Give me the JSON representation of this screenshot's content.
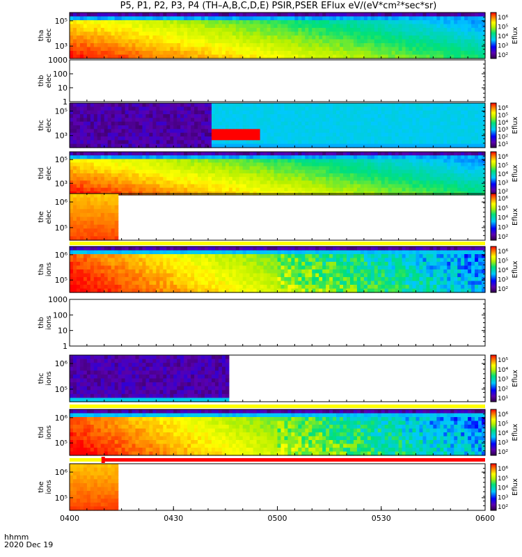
{
  "title": "P5, P1, P2, P3, P4 (TH–A,B,C,D,E) PSIR,PSER EFlux eV/(eV*cm²*sec*sr)",
  "footer": {
    "line1": "hhmm",
    "line2": "2020 Dec 19"
  },
  "chart_data": {
    "type": "heatmap",
    "x_axis": {
      "range": [
        "0400",
        "0600"
      ],
      "ticks": [
        "0400",
        "0430",
        "0500",
        "0530",
        "0600"
      ]
    },
    "panels": [
      {
        "id": "tha-elec",
        "ylabel": [
          "tha",
          "elec"
        ],
        "yticks": [
          "10⁵",
          "10³"
        ],
        "kind": "spec",
        "profile": "elec_full",
        "colorbar": true,
        "cbar_ticks": [
          "10⁶",
          "10⁵",
          "10⁴",
          "10³",
          "10²"
        ],
        "cbar_label": "Eflux"
      },
      {
        "id": "thb-elec",
        "ylabel": [
          "thb",
          "elec"
        ],
        "yticks": [
          "1000",
          "100",
          "10",
          "1"
        ],
        "kind": "empty",
        "colorbar": false
      },
      {
        "id": "thc-elec",
        "ylabel": [
          "thc",
          "elec"
        ],
        "yticks": [
          "10⁵",
          "10³"
        ],
        "kind": "spec",
        "profile": "thc_elec",
        "colorbar": true,
        "cbar_ticks": [
          "10⁶",
          "10⁵",
          "10⁴",
          "10³",
          "10²",
          "10¹"
        ],
        "cbar_label": "Eflux"
      },
      {
        "id": "thd-elec",
        "ylabel": [
          "thd",
          "elec"
        ],
        "yticks": [
          "10⁵",
          "10³"
        ],
        "kind": "spec",
        "profile": "elec_full",
        "colorbar": true,
        "cbar_ticks": [
          "10⁶",
          "10⁵",
          "10⁴",
          "10³",
          "10²"
        ],
        "cbar_label": "Eflux"
      },
      {
        "id": "the-elec",
        "ylabel": [
          "the",
          "elec"
        ],
        "yticks": [
          "10⁶",
          "10⁵"
        ],
        "kind": "spec",
        "profile": "the_short",
        "colorbar": true,
        "cbar_ticks": [
          "10⁶",
          "10⁵",
          "10⁴",
          "10³",
          "10²"
        ],
        "cbar_label": "Eflux",
        "mode_bar": "yellow"
      },
      {
        "id": "tha-ions",
        "ylabel": [
          "tha",
          "ions"
        ],
        "yticks": [
          "10⁶",
          "10⁵"
        ],
        "kind": "spec",
        "profile": "ions_full",
        "colorbar": true,
        "cbar_ticks": [
          "10⁶",
          "10⁵",
          "10⁴",
          "10³",
          "10²"
        ],
        "cbar_label": "Eflux"
      },
      {
        "id": "thb-ions",
        "ylabel": [
          "thb",
          "ions"
        ],
        "yticks": [
          "1000",
          "100",
          "10",
          "1"
        ],
        "kind": "empty",
        "colorbar": false
      },
      {
        "id": "thc-ions",
        "ylabel": [
          "thc",
          "ions"
        ],
        "yticks": [
          "10⁶",
          "10⁵"
        ],
        "kind": "spec",
        "profile": "thc_ions",
        "colorbar": true,
        "cbar_ticks": [
          "10⁵",
          "10⁴",
          "10³",
          "10²",
          "10¹"
        ],
        "cbar_label": "Eflux",
        "mode_bar": "yellow"
      },
      {
        "id": "thd-ions",
        "ylabel": [
          "thd",
          "ions"
        ],
        "yticks": [
          "10⁶",
          "10⁵"
        ],
        "kind": "spec",
        "profile": "ions_full",
        "colorbar": true,
        "cbar_ticks": [
          "10⁶",
          "10⁵",
          "10⁴",
          "10³",
          "10²"
        ],
        "cbar_label": "Eflux",
        "mode_bar": "yellow-red"
      },
      {
        "id": "the-ions",
        "ylabel": [
          "the",
          "ions"
        ],
        "yticks": [
          "10⁶",
          "10⁵"
        ],
        "kind": "spec",
        "profile": "the_short",
        "colorbar": true,
        "cbar_ticks": [
          "10⁶",
          "10⁵",
          "10⁴",
          "10³",
          "10²"
        ],
        "cbar_label": "Eflux"
      }
    ]
  }
}
